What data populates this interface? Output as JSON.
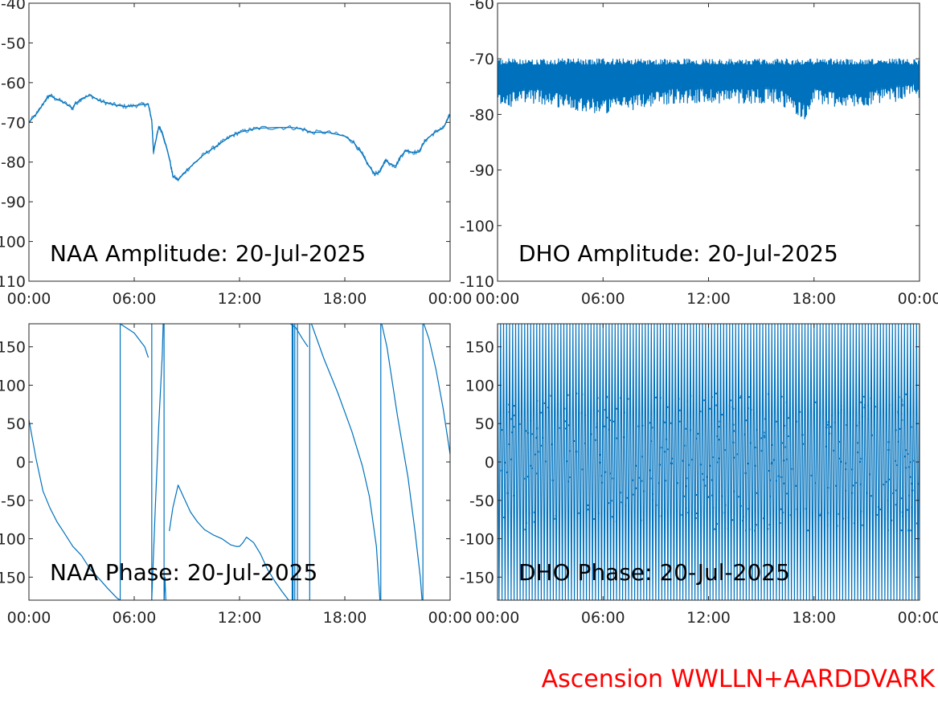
{
  "footer_text": "Ascension WWLLN+AARDDVARK",
  "colors": {
    "trace": "#0072bd",
    "footer": "#ff0000",
    "axes": "#262626"
  },
  "chart_data": [
    {
      "type": "line",
      "title": "NAA Amplitude: 20-Jul-2025",
      "x_ticks": [
        "00:00",
        "06:00",
        "12:00",
        "18:00",
        "00:00"
      ],
      "x_range_hours": [
        0,
        24
      ],
      "ylim": [
        -110,
        -40
      ],
      "y_ticks": [
        -40,
        -50,
        -60,
        -70,
        -80,
        -90,
        -100,
        -110
      ],
      "y_tick_labels": [
        "-40",
        "-50",
        "-60",
        "-70",
        "-80",
        "-90",
        "-100",
        "-110"
      ],
      "series": [
        {
          "x": [
            0,
            0.5,
            1,
            1.2,
            1.5,
            2,
            2.5,
            2.6,
            3,
            3.5,
            4,
            4.5,
            5,
            5.5,
            6,
            6.5,
            6.8,
            7,
            7.1,
            7.4,
            7.6,
            8,
            8.2,
            8.5,
            9,
            9.5,
            10,
            10.5,
            11,
            11.5,
            12,
            12.5,
            13,
            14,
            15,
            15.7,
            16,
            17,
            18,
            18.5,
            19,
            19.3,
            19.7,
            20,
            20.3,
            20.6,
            20.9,
            21.2,
            21.5,
            21.8,
            22.2,
            22.6,
            23,
            23.3,
            23.6,
            24
          ],
          "y": [
            -70,
            -67.5,
            -64,
            -63.2,
            -64,
            -65,
            -66.5,
            -65.5,
            -64,
            -63.2,
            -64.5,
            -65.2,
            -65.7,
            -66,
            -65.8,
            -65.5,
            -65.5,
            -69.5,
            -77.5,
            -71,
            -72.5,
            -79,
            -83.5,
            -84.5,
            -82,
            -80,
            -78,
            -76.5,
            -75,
            -73.5,
            -72.5,
            -72,
            -71.5,
            -71.3,
            -71.3,
            -71.8,
            -72.5,
            -72.5,
            -73.5,
            -75,
            -78,
            -80.5,
            -83,
            -82.5,
            -79.5,
            -80.5,
            -81,
            -78.5,
            -77,
            -77.5,
            -77.5,
            -74.5,
            -73,
            -72,
            -71.5,
            -68
          ]
        }
      ]
    },
    {
      "type": "line",
      "title": "DHO Amplitude: 20-Jul-2025",
      "x_ticks": [
        "00:00",
        "06:00",
        "12:00",
        "18:00",
        "00:00"
      ],
      "x_range_hours": [
        0,
        24
      ],
      "ylim": [
        -110,
        -60
      ],
      "y_ticks": [
        -60,
        -70,
        -80,
        -90,
        -100,
        -110
      ],
      "y_tick_labels": [
        "-60",
        "-70",
        "-80",
        "-90",
        "-100",
        "-110"
      ],
      "series": [
        {
          "band_x": [
            0,
            2,
            4,
            6,
            8,
            10,
            12,
            14,
            16,
            17.5,
            18,
            20,
            22,
            24
          ],
          "band_upper": [
            -70,
            -70,
            -70,
            -70,
            -70,
            -70,
            -70,
            -70,
            -70,
            -70,
            -70,
            -70,
            -70,
            -70
          ],
          "band_lower": [
            -79,
            -78,
            -79,
            -80,
            -79,
            -78,
            -78,
            -78,
            -78,
            -81,
            -78,
            -79,
            -78,
            -77
          ]
        }
      ]
    },
    {
      "type": "line",
      "title": "NAA Phase: 20-Jul-2025",
      "x_ticks": [
        "00:00",
        "06:00",
        "12:00",
        "18:00",
        "00:00"
      ],
      "x_range_hours": [
        0,
        24
      ],
      "ylim": [
        -180,
        180
      ],
      "y_ticks": [
        150,
        100,
        50,
        0,
        -50,
        -100,
        -150
      ],
      "y_tick_labels": [
        "150",
        "100",
        "50",
        "0",
        "-50",
        "-100",
        "-150"
      ],
      "series": [
        {
          "segments": [
            {
              "x": [
                0,
                0.4,
                0.8,
                1.2,
                1.6,
                2.0,
                2.5,
                3.0,
                3.5,
                4.0,
                4.5,
                5.0,
                5.2
              ],
              "y": [
                55,
                5,
                -38,
                -60,
                -78,
                -92,
                -110,
                -122,
                -140,
                -152,
                -165,
                -177,
                -180
              ]
            },
            {
              "x": [
                5.2,
                6.0,
                6.6,
                6.8
              ],
              "y": [
                180,
                168,
                150,
                136
              ]
            },
            {
              "x": [
                7.0,
                7.2,
                7.4,
                7.6,
                7.65
              ],
              "y": [
                -180,
                -60,
                50,
                140,
                180
              ]
            },
            {
              "x": [
                7.7,
                7.75,
                7.8
              ],
              "y": [
                -180,
                -150,
                -180
              ]
            },
            {
              "x": [
                8.0,
                8.2,
                8.5,
                8.8,
                9.2,
                9.6,
                10.0,
                10.5,
                11.0,
                11.5,
                11.8,
                12.0,
                12.2,
                12.4,
                12.8,
                13.2,
                13.6,
                14.0,
                14.4,
                14.8
              ],
              "y": [
                -90,
                -60,
                -30,
                -45,
                -65,
                -78,
                -88,
                -95,
                -100,
                -108,
                -110,
                -110,
                -105,
                -98,
                -105,
                -120,
                -140,
                -155,
                -168,
                -180
              ]
            },
            {
              "x": [
                14.9,
                15.2,
                15.6,
                15.9
              ],
              "y": [
                180,
                175,
                160,
                150
              ]
            },
            {
              "x": [
                16.1,
                16.8,
                17.6,
                18.4,
                19.0,
                19.4,
                19.8,
                20.0
              ],
              "y": [
                180,
                135,
                90,
                40,
                -5,
                -45,
                -110,
                -180
              ]
            },
            {
              "x": [
                20.1,
                20.4,
                21.0,
                21.6,
                22.0,
                22.3,
                22.4
              ],
              "y": [
                180,
                150,
                60,
                -20,
                -90,
                -150,
                -180
              ]
            },
            {
              "x": [
                22.5,
                22.8,
                23.2,
                23.6,
                24.0
              ],
              "y": [
                180,
                160,
                120,
                70,
                10
              ]
            }
          ],
          "wrap_lines_x": [
            5.2,
            7.0,
            7.7,
            15.0,
            15.05,
            15.15,
            15.3,
            16.0,
            20.05,
            22.45
          ]
        }
      ]
    },
    {
      "type": "line",
      "title": "DHO Phase: 20-Jul-2025",
      "x_ticks": [
        "00:00",
        "06:00",
        "12:00",
        "18:00",
        "00:00"
      ],
      "x_range_hours": [
        0,
        24
      ],
      "ylim": [
        -180,
        180
      ],
      "y_ticks": [
        150,
        100,
        50,
        0,
        -50,
        -100,
        -150
      ],
      "y_tick_labels": [
        "150",
        "100",
        "50",
        "0",
        "-50",
        "-100",
        "-150"
      ],
      "series": [
        {
          "wrap_count": 140,
          "wrap_range": [
            -180,
            180
          ]
        }
      ]
    }
  ]
}
